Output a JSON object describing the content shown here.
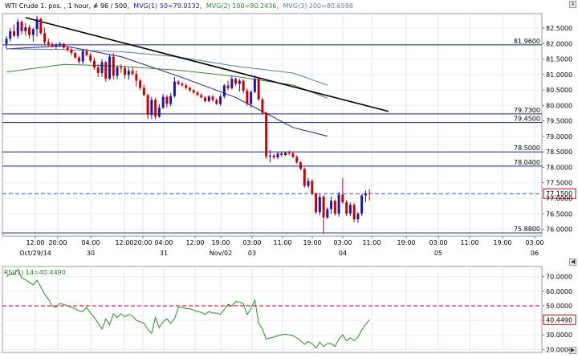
{
  "header": {
    "main_info": "WTI Crude 1. pos. , 1 hour, # 96 / 500,",
    "mvg1": "MVG(1) 50=79.0132,",
    "mvg2": "MVG(2) 100=80.2436,",
    "mvg3": "MVG(3) 200=80.6598",
    "rsi": "RSI(1) 14=40.4490"
  },
  "colors": {
    "up": "#1a1aa6",
    "down": "#cc0000",
    "mvg1": "#1c1c8f",
    "mvg2": "#2e8b2e",
    "mvg3": "#5a7ea8",
    "hline": "#1a237e",
    "trend": "#000000",
    "rsi": "#2a8a2a",
    "dashed_price": "#3a4fc4",
    "rsi_ref": "#cc0000"
  },
  "chart_data": [
    {
      "type": "candlestick",
      "title": "WTI Crude 1. pos. , 1 hour",
      "ylim": [
        75.78,
        82.97
      ],
      "y_ticks": [
        "82.5000",
        "82.0000",
        "81.5000",
        "81.0000",
        "80.5000",
        "80.0000",
        "79.5000",
        "79.0000",
        "78.5000",
        "78.0000",
        "77.5000",
        "77.0000",
        "76.5000",
        "76.0000"
      ],
      "x_time_labels": [
        "12:00",
        "20:00",
        "04:00",
        "12:00",
        "20:00",
        "04:00",
        "12:00",
        "19:00",
        "03:00",
        "11:00",
        "19:00",
        "03:00",
        "11:00",
        "19:00",
        "03:00",
        "11:00",
        "19:00",
        "03:00"
      ],
      "x_date_labels": [
        "Oct/29/14",
        "30",
        "31",
        "Nov/02",
        "03",
        "04",
        "05",
        "06"
      ],
      "candles": [
        {
          "o": 81.99,
          "h": 82.24,
          "l": 81.84,
          "c": 82.16
        },
        {
          "o": 82.16,
          "h": 82.5,
          "l": 82.07,
          "c": 82.4
        },
        {
          "o": 82.4,
          "h": 82.62,
          "l": 82.21,
          "c": 82.25
        },
        {
          "o": 82.25,
          "h": 82.81,
          "l": 82.16,
          "c": 82.71
        },
        {
          "o": 82.71,
          "h": 82.75,
          "l": 82.29,
          "c": 82.4
        },
        {
          "o": 82.4,
          "h": 82.67,
          "l": 82.26,
          "c": 82.53
        },
        {
          "o": 82.53,
          "h": 82.61,
          "l": 82.16,
          "c": 82.28
        },
        {
          "o": 82.28,
          "h": 82.52,
          "l": 82.07,
          "c": 82.47
        },
        {
          "o": 82.47,
          "h": 82.9,
          "l": 82.23,
          "c": 82.8
        },
        {
          "o": 82.8,
          "h": 82.85,
          "l": 82.28,
          "c": 82.34
        },
        {
          "o": 82.34,
          "h": 82.52,
          "l": 81.94,
          "c": 82.05
        },
        {
          "o": 82.05,
          "h": 82.16,
          "l": 81.89,
          "c": 81.98
        },
        {
          "o": 81.98,
          "h": 82.05,
          "l": 81.88,
          "c": 81.92
        },
        {
          "o": 81.92,
          "h": 82.01,
          "l": 81.83,
          "c": 81.97
        },
        {
          "o": 81.97,
          "h": 82.06,
          "l": 81.89,
          "c": 82.0
        },
        {
          "o": 82.0,
          "h": 82.02,
          "l": 81.83,
          "c": 81.87
        },
        {
          "o": 81.87,
          "h": 81.92,
          "l": 81.73,
          "c": 81.8
        },
        {
          "o": 81.8,
          "h": 81.88,
          "l": 81.62,
          "c": 81.7
        },
        {
          "o": 81.7,
          "h": 81.74,
          "l": 81.52,
          "c": 81.55
        },
        {
          "o": 81.55,
          "h": 81.6,
          "l": 81.35,
          "c": 81.42
        },
        {
          "o": 81.42,
          "h": 81.81,
          "l": 81.33,
          "c": 81.76
        },
        {
          "o": 81.76,
          "h": 81.84,
          "l": 81.58,
          "c": 81.63
        },
        {
          "o": 81.63,
          "h": 81.7,
          "l": 81.38,
          "c": 81.45
        },
        {
          "o": 81.45,
          "h": 81.55,
          "l": 81.16,
          "c": 81.23
        },
        {
          "o": 81.23,
          "h": 81.34,
          "l": 80.92,
          "c": 81.05
        },
        {
          "o": 81.05,
          "h": 81.5,
          "l": 80.93,
          "c": 81.4
        },
        {
          "o": 81.4,
          "h": 81.45,
          "l": 80.77,
          "c": 80.87
        },
        {
          "o": 80.87,
          "h": 81.64,
          "l": 80.82,
          "c": 81.58
        },
        {
          "o": 81.58,
          "h": 81.7,
          "l": 80.84,
          "c": 80.96
        },
        {
          "o": 80.96,
          "h": 81.3,
          "l": 80.86,
          "c": 81.23
        },
        {
          "o": 81.23,
          "h": 81.34,
          "l": 81.05,
          "c": 81.21
        },
        {
          "o": 81.21,
          "h": 81.28,
          "l": 80.87,
          "c": 80.99
        },
        {
          "o": 80.99,
          "h": 81.23,
          "l": 80.84,
          "c": 81.12
        },
        {
          "o": 81.12,
          "h": 81.23,
          "l": 80.97,
          "c": 81.02
        },
        {
          "o": 81.02,
          "h": 81.14,
          "l": 80.62,
          "c": 80.8
        },
        {
          "o": 80.8,
          "h": 80.86,
          "l": 80.5,
          "c": 80.57
        },
        {
          "o": 80.57,
          "h": 80.67,
          "l": 80.3,
          "c": 80.34
        },
        {
          "o": 80.34,
          "h": 80.37,
          "l": 79.56,
          "c": 79.69
        },
        {
          "o": 79.69,
          "h": 80.28,
          "l": 79.56,
          "c": 80.18
        },
        {
          "o": 80.18,
          "h": 80.26,
          "l": 79.56,
          "c": 79.64
        },
        {
          "o": 79.64,
          "h": 80.05,
          "l": 79.6,
          "c": 79.93
        },
        {
          "o": 79.93,
          "h": 80.37,
          "l": 79.88,
          "c": 80.28
        },
        {
          "o": 80.28,
          "h": 80.34,
          "l": 79.93,
          "c": 80.05
        },
        {
          "o": 80.05,
          "h": 80.41,
          "l": 79.98,
          "c": 80.3
        },
        {
          "o": 80.3,
          "h": 80.92,
          "l": 80.26,
          "c": 80.77
        },
        {
          "o": 80.77,
          "h": 80.82,
          "l": 80.65,
          "c": 80.7
        },
        {
          "o": 80.7,
          "h": 80.75,
          "l": 80.62,
          "c": 80.65
        },
        {
          "o": 80.65,
          "h": 80.72,
          "l": 80.52,
          "c": 80.57
        },
        {
          "o": 80.57,
          "h": 80.61,
          "l": 80.44,
          "c": 80.49
        },
        {
          "o": 80.49,
          "h": 80.53,
          "l": 80.37,
          "c": 80.42
        },
        {
          "o": 80.42,
          "h": 80.47,
          "l": 80.31,
          "c": 80.34
        },
        {
          "o": 80.34,
          "h": 80.39,
          "l": 80.23,
          "c": 80.26
        },
        {
          "o": 80.26,
          "h": 80.3,
          "l": 80.1,
          "c": 80.14
        },
        {
          "o": 80.14,
          "h": 80.34,
          "l": 80.1,
          "c": 80.29
        },
        {
          "o": 80.29,
          "h": 80.34,
          "l": 80.12,
          "c": 80.18
        },
        {
          "o": 80.18,
          "h": 80.23,
          "l": 80.02,
          "c": 80.05
        },
        {
          "o": 80.05,
          "h": 80.36,
          "l": 79.99,
          "c": 80.29
        },
        {
          "o": 80.29,
          "h": 80.7,
          "l": 80.23,
          "c": 80.65
        },
        {
          "o": 80.65,
          "h": 80.8,
          "l": 80.49,
          "c": 80.56
        },
        {
          "o": 80.56,
          "h": 80.96,
          "l": 80.52,
          "c": 80.86
        },
        {
          "o": 80.86,
          "h": 80.91,
          "l": 80.64,
          "c": 80.7
        },
        {
          "o": 80.7,
          "h": 80.86,
          "l": 80.45,
          "c": 80.8
        },
        {
          "o": 80.8,
          "h": 80.85,
          "l": 80.4,
          "c": 80.48
        },
        {
          "o": 80.48,
          "h": 80.55,
          "l": 79.99,
          "c": 80.05
        },
        {
          "o": 80.05,
          "h": 80.49,
          "l": 79.93,
          "c": 80.44
        },
        {
          "o": 80.44,
          "h": 80.96,
          "l": 80.4,
          "c": 80.86
        },
        {
          "o": 80.86,
          "h": 80.89,
          "l": 80.15,
          "c": 80.2
        },
        {
          "o": 80.2,
          "h": 80.25,
          "l": 79.7,
          "c": 79.76
        },
        {
          "o": 79.76,
          "h": 79.8,
          "l": 78.27,
          "c": 78.35
        },
        {
          "o": 78.35,
          "h": 78.56,
          "l": 78.16,
          "c": 78.38
        },
        {
          "o": 78.38,
          "h": 78.43,
          "l": 78.27,
          "c": 78.32
        },
        {
          "o": 78.32,
          "h": 78.5,
          "l": 78.27,
          "c": 78.45
        },
        {
          "o": 78.45,
          "h": 78.5,
          "l": 78.34,
          "c": 78.4
        },
        {
          "o": 78.4,
          "h": 78.51,
          "l": 78.37,
          "c": 78.47
        },
        {
          "o": 78.47,
          "h": 78.54,
          "l": 78.4,
          "c": 78.45
        },
        {
          "o": 78.45,
          "h": 78.5,
          "l": 78.29,
          "c": 78.34
        },
        {
          "o": 78.34,
          "h": 78.39,
          "l": 78.11,
          "c": 78.16
        },
        {
          "o": 78.16,
          "h": 78.2,
          "l": 77.91,
          "c": 77.95
        },
        {
          "o": 77.95,
          "h": 78.0,
          "l": 77.34,
          "c": 77.4
        },
        {
          "o": 77.4,
          "h": 77.66,
          "l": 77.33,
          "c": 77.56
        },
        {
          "o": 77.56,
          "h": 77.61,
          "l": 77.1,
          "c": 77.15
        },
        {
          "o": 77.15,
          "h": 77.19,
          "l": 76.49,
          "c": 76.55
        },
        {
          "o": 76.55,
          "h": 77.13,
          "l": 76.45,
          "c": 77.05
        },
        {
          "o": 77.05,
          "h": 77.1,
          "l": 75.85,
          "c": 76.38
        },
        {
          "o": 76.38,
          "h": 76.71,
          "l": 76.32,
          "c": 76.65
        },
        {
          "o": 76.65,
          "h": 77.06,
          "l": 76.49,
          "c": 76.92
        },
        {
          "o": 76.92,
          "h": 76.96,
          "l": 76.44,
          "c": 76.5
        },
        {
          "o": 76.5,
          "h": 77.21,
          "l": 76.4,
          "c": 77.12
        },
        {
          "o": 77.12,
          "h": 77.66,
          "l": 76.82,
          "c": 76.87
        },
        {
          "o": 76.87,
          "h": 76.94,
          "l": 76.43,
          "c": 76.5
        },
        {
          "o": 76.5,
          "h": 76.86,
          "l": 76.42,
          "c": 76.79
        },
        {
          "o": 76.79,
          "h": 76.84,
          "l": 76.23,
          "c": 76.32
        },
        {
          "o": 76.32,
          "h": 76.55,
          "l": 76.2,
          "c": 76.5
        },
        {
          "o": 76.5,
          "h": 77.13,
          "l": 76.43,
          "c": 77.09
        },
        {
          "o": 77.09,
          "h": 77.25,
          "l": 76.88,
          "c": 77.16
        },
        {
          "o": 77.16,
          "h": 77.3,
          "l": 76.93,
          "c": 77.15
        }
      ],
      "moving_averages": [
        {
          "name": "MVG(1) 50",
          "value": 79.0132,
          "points": [
            {
              "i": 0,
              "v": 81.83
            },
            {
              "i": 15,
              "v": 81.93
            },
            {
              "i": 30,
              "v": 81.58
            },
            {
              "i": 45,
              "v": 80.95
            },
            {
              "i": 60,
              "v": 80.26
            },
            {
              "i": 75,
              "v": 79.29
            },
            {
              "i": 84,
              "v": 79.01
            }
          ]
        },
        {
          "name": "MVG(2) 100",
          "value": 80.2436,
          "points": [
            {
              "i": 0,
              "v": 81.08
            },
            {
              "i": 15,
              "v": 81.33
            },
            {
              "i": 30,
              "v": 81.27
            },
            {
              "i": 45,
              "v": 81.14
            },
            {
              "i": 60,
              "v": 80.94
            },
            {
              "i": 75,
              "v": 80.66
            },
            {
              "i": 84,
              "v": 80.24
            }
          ]
        },
        {
          "name": "MVG(3) 200",
          "value": 80.6598,
          "points": [
            {
              "i": 0,
              "v": 81.83
            },
            {
              "i": 15,
              "v": 81.81
            },
            {
              "i": 30,
              "v": 81.74
            },
            {
              "i": 45,
              "v": 81.57
            },
            {
              "i": 60,
              "v": 81.27
            },
            {
              "i": 75,
              "v": 81.05
            },
            {
              "i": 84,
              "v": 80.66
            }
          ]
        }
      ],
      "horizontal_lines": [
        {
          "value": 81.96,
          "label": "81.9600"
        },
        {
          "value": 79.73,
          "label": "79.7300"
        },
        {
          "value": 79.45,
          "label": "79.4500"
        },
        {
          "value": 78.5,
          "label": "78.5000"
        },
        {
          "value": 78.04,
          "label": "78.0400"
        },
        {
          "value": 75.88,
          "label": "75.8800"
        }
      ],
      "trendline": [
        {
          "i": 5,
          "v": 82.84
        },
        {
          "i": 100,
          "v": 79.81
        }
      ],
      "current_price": {
        "value": 77.15,
        "label": "77.1500"
      }
    },
    {
      "type": "line",
      "title": "RSI(1) 14",
      "ylim": [
        18,
        77
      ],
      "y_ticks": [
        "70.0000",
        "60.0000",
        "50.0000",
        "40.0000",
        "30.0000",
        "20.0000"
      ],
      "reference_line": 50,
      "current_value": {
        "value": 40.449,
        "label": "40.4490"
      },
      "values": [
        70,
        72,
        71.5,
        75,
        69,
        68,
        66,
        64.5,
        67.5,
        63,
        58,
        54.5,
        50,
        49,
        51.5,
        51,
        50,
        49,
        48,
        46.5,
        46,
        49,
        45,
        42,
        38,
        34,
        41,
        37,
        44.5,
        42,
        44.5,
        42.5,
        44,
        43,
        40,
        39,
        38,
        34,
        31,
        42,
        35,
        39,
        41,
        38,
        41,
        49,
        49,
        48,
        48,
        47,
        46,
        45.5,
        44,
        46,
        45,
        45,
        44,
        47.5,
        51,
        50,
        53,
        52.5,
        51.5,
        44,
        48,
        54,
        38,
        34,
        27,
        28,
        28.5,
        29.5,
        30,
        30.5,
        30,
        29.5,
        28,
        26,
        23.5,
        25.5,
        24,
        21,
        25,
        22,
        24,
        24,
        22,
        27,
        30,
        26,
        28,
        26,
        28.5,
        33.5,
        37,
        40.5
      ]
    }
  ]
}
